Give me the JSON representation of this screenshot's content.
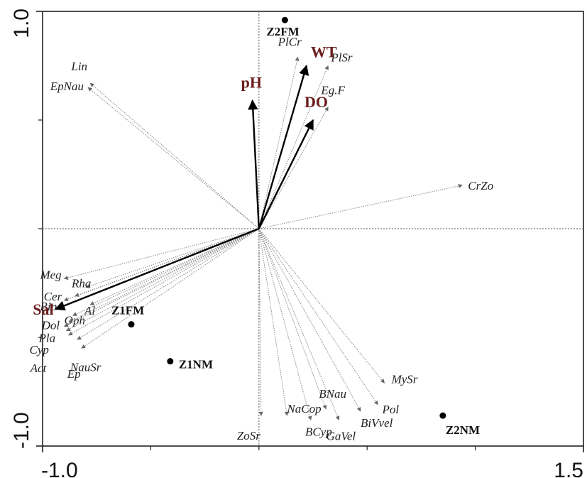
{
  "chart_data": {
    "type": "scatter",
    "title": "",
    "xlabel": "",
    "ylabel": "",
    "xlim": [
      -1.0,
      1.5
    ],
    "ylim": [
      -1.0,
      1.0
    ],
    "x_tick_labels": [
      {
        "value": -1.0,
        "label": "-1.0"
      },
      {
        "value": 1.5,
        "label": "1.5"
      }
    ],
    "y_tick_labels": [
      {
        "value": 1.0,
        "label": "1.0"
      },
      {
        "value": -1.0,
        "label": "-1.0"
      }
    ],
    "reference_lines": {
      "x": 0,
      "y": 0
    },
    "environment_vectors": [
      {
        "label": "pH",
        "x": -0.03,
        "y": 0.59
      },
      {
        "label": "WT",
        "x": 0.22,
        "y": 0.75
      },
      {
        "label": "DO",
        "x": 0.25,
        "y": 0.5
      },
      {
        "label": "Sal",
        "x": -0.94,
        "y": -0.37
      }
    ],
    "species_vectors": [
      {
        "label": "Lin",
        "x": -0.78,
        "y": 0.67
      },
      {
        "label": "EpNau",
        "x": -0.79,
        "y": 0.65
      },
      {
        "label": "PlCr",
        "x": 0.18,
        "y": 0.79
      },
      {
        "label": "PlSr",
        "x": 0.32,
        "y": 0.75
      },
      {
        "label": "Eg.F",
        "x": 0.32,
        "y": 0.56
      },
      {
        "label": "CrZo",
        "x": 0.94,
        "y": 0.2
      },
      {
        "label": "Meg",
        "x": -0.9,
        "y": -0.23
      },
      {
        "label": "Rha",
        "x": -0.8,
        "y": -0.27
      },
      {
        "label": "Cer",
        "x": -0.85,
        "y": -0.31
      },
      {
        "label": "Bip",
        "x": -0.9,
        "y": -0.33
      },
      {
        "label": "Al",
        "x": -0.78,
        "y": -0.35
      },
      {
        "label": "Oph",
        "x": -0.86,
        "y": -0.4
      },
      {
        "label": "Dol",
        "x": -0.88,
        "y": -0.43
      },
      {
        "label": "Pla",
        "x": -0.9,
        "y": -0.45
      },
      {
        "label": "NauSr",
        "x": -0.82,
        "y": -0.55
      },
      {
        "label": "Cyp",
        "x": -0.89,
        "y": -0.47
      },
      {
        "label": "Act",
        "x": -0.88,
        "y": -0.49
      },
      {
        "label": "Ep",
        "x": -0.84,
        "y": -0.51
      },
      {
        "label": "MySr",
        "x": 0.58,
        "y": -0.71
      },
      {
        "label": "Pol",
        "x": 0.55,
        "y": -0.81
      },
      {
        "label": "BiVvel",
        "x": 0.47,
        "y": -0.84
      },
      {
        "label": "BNau",
        "x": 0.31,
        "y": -0.83
      },
      {
        "label": "GaVel",
        "x": 0.37,
        "y": -0.88
      },
      {
        "label": "BCyp",
        "x": 0.24,
        "y": -0.88
      },
      {
        "label": "NaCop",
        "x": 0.13,
        "y": -0.86
      },
      {
        "label": "ZoSr",
        "x": 0.01,
        "y": -0.86
      }
    ],
    "sites": [
      {
        "label": "Z2FM",
        "x": 0.12,
        "y": 0.96
      },
      {
        "label": "Z1FM",
        "x": -0.59,
        "y": -0.44
      },
      {
        "label": "Z1NM",
        "x": -0.41,
        "y": -0.61
      },
      {
        "label": "Z2NM",
        "x": 0.85,
        "y": -0.86
      }
    ],
    "grid": false,
    "legend": "none"
  }
}
